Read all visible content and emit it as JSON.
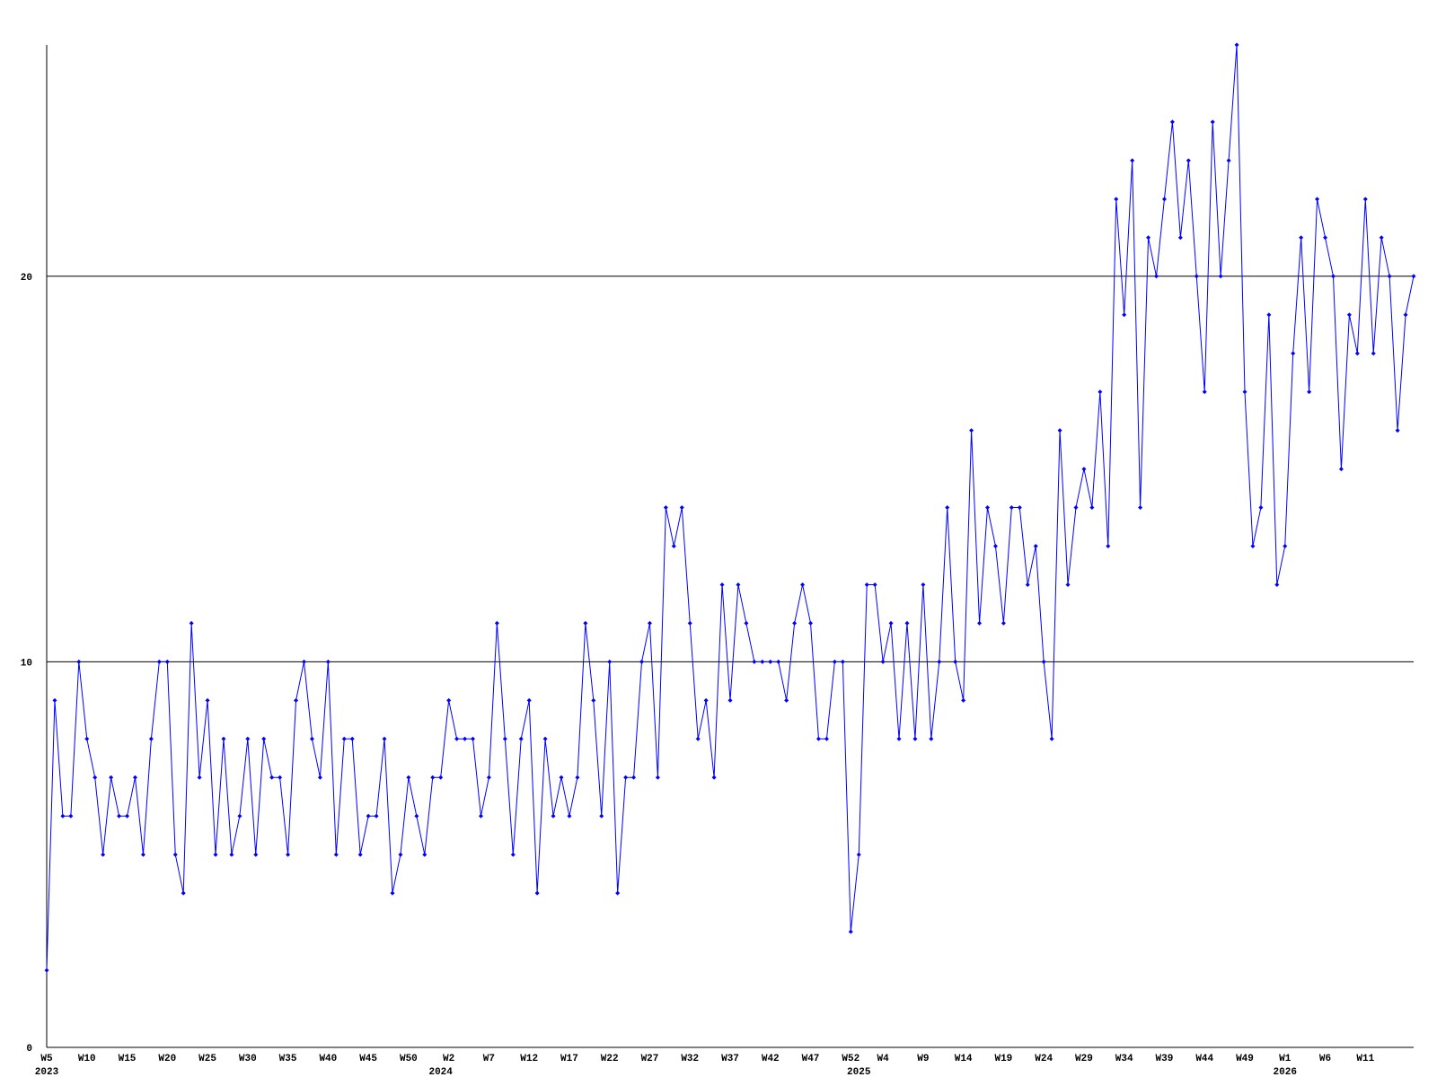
{
  "chart_data": {
    "type": "line",
    "categories": [
      "W5",
      null,
      null,
      null,
      null,
      "W10",
      null,
      null,
      null,
      null,
      "W15",
      null,
      null,
      null,
      null,
      "W20",
      null,
      null,
      null,
      null,
      "W25",
      null,
      null,
      null,
      null,
      "W30",
      null,
      null,
      null,
      null,
      "W35",
      null,
      null,
      null,
      null,
      "W40",
      null,
      null,
      null,
      null,
      "W45",
      null,
      null,
      null,
      null,
      "W50",
      null,
      null,
      null,
      null,
      "W2",
      null,
      null,
      null,
      null,
      "W7",
      null,
      null,
      null,
      null,
      "W12",
      null,
      null,
      null,
      null,
      "W17",
      null,
      null,
      null,
      null,
      "W22",
      null,
      null,
      null,
      null,
      "W27",
      null,
      null,
      null,
      null,
      "W32",
      null,
      null,
      null,
      null,
      "W37",
      null,
      null,
      null,
      null,
      "W42",
      null,
      null,
      null,
      null,
      "W47",
      null,
      null,
      null,
      null,
      "W52",
      null,
      null,
      null,
      "W4",
      null,
      null,
      null,
      null,
      "W9",
      null,
      null,
      null,
      null,
      "W14",
      null,
      null,
      null,
      null,
      "W19",
      null,
      null,
      null,
      null,
      "W24",
      null,
      null,
      null,
      null,
      "W29",
      null,
      null,
      null,
      null,
      "W34",
      null,
      null,
      null,
      null,
      "W39",
      null,
      null,
      null,
      null,
      "W44",
      null,
      null,
      null,
      null,
      "W49",
      null,
      null,
      null,
      null,
      "W1",
      null,
      null,
      null,
      null,
      "W6",
      null,
      null,
      null,
      null,
      "W11",
      null,
      null,
      null,
      null,
      null,
      null
    ],
    "years": [
      "2023",
      null,
      null,
      null,
      null,
      null,
      null,
      null,
      null,
      null,
      null,
      null,
      null,
      null,
      null,
      null,
      null,
      null,
      null,
      null,
      null,
      null,
      null,
      null,
      null,
      null,
      null,
      null,
      null,
      null,
      null,
      null,
      null,
      null,
      null,
      null,
      null,
      null,
      null,
      null,
      null,
      null,
      null,
      null,
      null,
      null,
      null,
      null,
      null,
      "2024",
      null,
      null,
      null,
      null,
      null,
      null,
      null,
      null,
      null,
      null,
      null,
      null,
      null,
      null,
      null,
      null,
      null,
      null,
      null,
      null,
      null,
      null,
      null,
      null,
      null,
      null,
      null,
      null,
      null,
      null,
      null,
      null,
      null,
      null,
      null,
      null,
      null,
      null,
      null,
      null,
      null,
      null,
      null,
      null,
      null,
      null,
      null,
      null,
      null,
      null,
      null,
      "2025",
      null,
      null,
      null,
      null,
      null,
      null,
      null,
      null,
      null,
      null,
      null,
      null,
      null,
      null,
      null,
      null,
      null,
      null,
      null,
      null,
      null,
      null,
      null,
      null,
      null,
      null,
      null,
      null,
      null,
      null,
      null,
      null,
      null,
      null,
      null,
      null,
      null,
      null,
      null,
      null,
      null,
      null,
      null,
      null,
      null,
      null,
      null,
      null,
      null,
      null,
      null,
      null,
      "2026",
      null,
      null,
      null,
      null,
      null,
      null,
      null,
      null,
      null,
      null,
      null,
      null,
      null,
      null,
      null,
      null
    ],
    "series": [
      {
        "color": "#0000ff",
        "values": [
          2,
          9,
          6,
          6,
          10,
          8,
          7,
          5,
          7,
          6,
          6,
          7,
          5,
          8,
          10,
          10,
          5,
          4,
          11,
          7,
          9,
          5,
          8,
          5,
          6,
          8,
          5,
          8,
          7,
          7,
          5,
          9,
          10,
          8,
          7,
          10,
          5,
          8,
          8,
          5,
          6,
          6,
          8,
          4,
          5,
          7,
          6,
          5,
          7,
          7,
          9,
          8,
          8,
          8,
          6,
          7,
          11,
          8,
          5,
          8,
          9,
          4,
          8,
          6,
          7,
          6,
          7,
          11,
          9,
          6,
          10,
          4,
          7,
          7,
          10,
          11,
          7,
          14,
          13,
          14,
          11,
          8,
          9,
          7,
          12,
          9,
          12,
          11,
          10,
          10,
          10,
          10,
          9,
          11,
          12,
          11,
          8,
          8,
          10,
          10,
          3,
          5,
          12,
          12,
          10,
          11,
          8,
          11,
          8,
          12,
          8,
          10,
          14,
          10,
          9,
          16,
          11,
          14,
          13,
          11,
          14,
          14,
          12,
          13,
          10,
          8,
          16,
          12,
          14,
          15,
          14,
          17,
          13,
          22,
          19,
          23,
          14,
          21,
          20,
          22,
          24,
          21,
          23,
          20,
          17,
          24,
          20,
          23,
          26,
          17,
          13,
          14,
          19,
          12,
          13,
          18,
          21,
          17,
          22,
          21,
          20,
          15,
          19,
          18,
          22,
          18,
          21,
          20,
          16,
          19,
          20
        ]
      }
    ],
    "ylim": [
      0,
      26
    ],
    "yticks": [
      0,
      10,
      20
    ],
    "grid": true
  }
}
